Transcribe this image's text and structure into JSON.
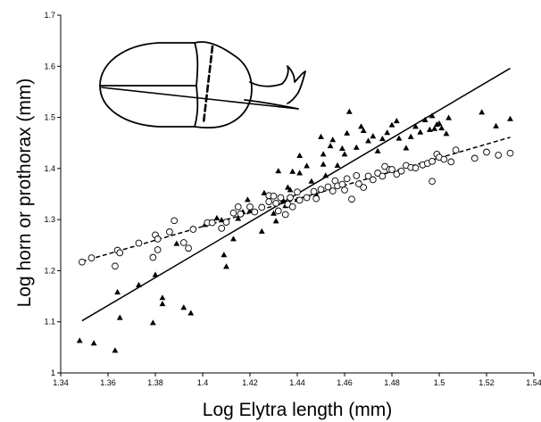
{
  "chart_data": {
    "type": "scatter",
    "title": "",
    "xlabel": "Log Elytra length (mm)",
    "ylabel": "Log horn or prothorax (mm)",
    "xlim": [
      1.34,
      1.54
    ],
    "ylim": [
      1.0,
      1.7
    ],
    "x_ticks": [
      "1.34",
      "1.36",
      "1.38",
      "1.4",
      "1.42",
      "1.44",
      "1.46",
      "1.48",
      "1.5",
      "1.52",
      "1.54"
    ],
    "y_ticks": [
      "1",
      "1.1",
      "1.2",
      "1.3",
      "1.4",
      "1.5",
      "1.6",
      "1.7"
    ],
    "grid": false,
    "legend": "none",
    "series": [
      {
        "marker": "filled-triangle",
        "color": "#000000",
        "points": [
          [
            1.348,
            1.063
          ],
          [
            1.354,
            1.058
          ],
          [
            1.363,
            1.044
          ],
          [
            1.364,
            1.158
          ],
          [
            1.365,
            1.108
          ],
          [
            1.373,
            1.172
          ],
          [
            1.379,
            1.098
          ],
          [
            1.38,
            1.192
          ],
          [
            1.383,
            1.147
          ],
          [
            1.383,
            1.135
          ],
          [
            1.389,
            1.253
          ],
          [
            1.392,
            1.128
          ],
          [
            1.395,
            1.117
          ],
          [
            1.401,
            1.29
          ],
          [
            1.406,
            1.303
          ],
          [
            1.408,
            1.299
          ],
          [
            1.409,
            1.231
          ],
          [
            1.41,
            1.208
          ],
          [
            1.413,
            1.262
          ],
          [
            1.415,
            1.302
          ],
          [
            1.417,
            1.315
          ],
          [
            1.419,
            1.339
          ],
          [
            1.42,
            1.317
          ],
          [
            1.425,
            1.277
          ],
          [
            1.426,
            1.352
          ],
          [
            1.428,
            1.347
          ],
          [
            1.43,
            1.312
          ],
          [
            1.431,
            1.297
          ],
          [
            1.432,
            1.395
          ],
          [
            1.434,
            1.338
          ],
          [
            1.435,
            1.327
          ],
          [
            1.436,
            1.363
          ],
          [
            1.437,
            1.358
          ],
          [
            1.438,
            1.394
          ],
          [
            1.44,
            1.339
          ],
          [
            1.441,
            1.425
          ],
          [
            1.441,
            1.391
          ],
          [
            1.444,
            1.405
          ],
          [
            1.446,
            1.375
          ],
          [
            1.448,
            1.349
          ],
          [
            1.45,
            1.462
          ],
          [
            1.451,
            1.428
          ],
          [
            1.451,
            1.408
          ],
          [
            1.452,
            1.386
          ],
          [
            1.454,
            1.444
          ],
          [
            1.455,
            1.456
          ],
          [
            1.457,
            1.406
          ],
          [
            1.459,
            1.439
          ],
          [
            1.46,
            1.428
          ],
          [
            1.461,
            1.469
          ],
          [
            1.462,
            1.511
          ],
          [
            1.465,
            1.441
          ],
          [
            1.467,
            1.482
          ],
          [
            1.468,
            1.474
          ],
          [
            1.47,
            1.454
          ],
          [
            1.472,
            1.463
          ],
          [
            1.474,
            1.434
          ],
          [
            1.476,
            1.458
          ],
          [
            1.478,
            1.47
          ],
          [
            1.48,
            1.485
          ],
          [
            1.482,
            1.493
          ],
          [
            1.483,
            1.459
          ],
          [
            1.486,
            1.44
          ],
          [
            1.488,
            1.462
          ],
          [
            1.49,
            1.482
          ],
          [
            1.492,
            1.471
          ],
          [
            1.494,
            1.495
          ],
          [
            1.496,
            1.476
          ],
          [
            1.497,
            1.503
          ],
          [
            1.498,
            1.478
          ],
          [
            1.499,
            1.486
          ],
          [
            1.5,
            1.488
          ],
          [
            1.501,
            1.479
          ],
          [
            1.503,
            1.468
          ],
          [
            1.504,
            1.499
          ],
          [
            1.518,
            1.51
          ],
          [
            1.524,
            1.483
          ],
          [
            1.53,
            1.497
          ]
        ]
      },
      {
        "marker": "open-circle",
        "color": "#000000",
        "points": [
          [
            1.349,
            1.217
          ],
          [
            1.353,
            1.225
          ],
          [
            1.363,
            1.209
          ],
          [
            1.364,
            1.24
          ],
          [
            1.365,
            1.235
          ],
          [
            1.373,
            1.254
          ],
          [
            1.379,
            1.226
          ],
          [
            1.38,
            1.27
          ],
          [
            1.381,
            1.241
          ],
          [
            1.381,
            1.262
          ],
          [
            1.386,
            1.276
          ],
          [
            1.388,
            1.298
          ],
          [
            1.392,
            1.255
          ],
          [
            1.394,
            1.244
          ],
          [
            1.396,
            1.281
          ],
          [
            1.402,
            1.294
          ],
          [
            1.404,
            1.294
          ],
          [
            1.408,
            1.283
          ],
          [
            1.41,
            1.295
          ],
          [
            1.413,
            1.313
          ],
          [
            1.415,
            1.325
          ],
          [
            1.416,
            1.311
          ],
          [
            1.42,
            1.325
          ],
          [
            1.422,
            1.315
          ],
          [
            1.425,
            1.324
          ],
          [
            1.428,
            1.335
          ],
          [
            1.428,
            1.347
          ],
          [
            1.43,
            1.346
          ],
          [
            1.431,
            1.332
          ],
          [
            1.432,
            1.317
          ],
          [
            1.433,
            1.343
          ],
          [
            1.435,
            1.31
          ],
          [
            1.436,
            1.33
          ],
          [
            1.437,
            1.343
          ],
          [
            1.438,
            1.325
          ],
          [
            1.44,
            1.354
          ],
          [
            1.441,
            1.338
          ],
          [
            1.444,
            1.343
          ],
          [
            1.447,
            1.355
          ],
          [
            1.448,
            1.341
          ],
          [
            1.45,
            1.359
          ],
          [
            1.453,
            1.364
          ],
          [
            1.455,
            1.356
          ],
          [
            1.456,
            1.376
          ],
          [
            1.457,
            1.366
          ],
          [
            1.459,
            1.369
          ],
          [
            1.46,
            1.358
          ],
          [
            1.461,
            1.38
          ],
          [
            1.463,
            1.34
          ],
          [
            1.465,
            1.386
          ],
          [
            1.466,
            1.37
          ],
          [
            1.468,
            1.363
          ],
          [
            1.47,
            1.385
          ],
          [
            1.472,
            1.378
          ],
          [
            1.474,
            1.391
          ],
          [
            1.476,
            1.385
          ],
          [
            1.477,
            1.404
          ],
          [
            1.479,
            1.398
          ],
          [
            1.48,
            1.398
          ],
          [
            1.482,
            1.389
          ],
          [
            1.484,
            1.395
          ],
          [
            1.486,
            1.406
          ],
          [
            1.488,
            1.402
          ],
          [
            1.49,
            1.401
          ],
          [
            1.493,
            1.407
          ],
          [
            1.495,
            1.41
          ],
          [
            1.497,
            1.375
          ],
          [
            1.497,
            1.414
          ],
          [
            1.499,
            1.428
          ],
          [
            1.5,
            1.422
          ],
          [
            1.502,
            1.418
          ],
          [
            1.505,
            1.413
          ],
          [
            1.507,
            1.436
          ],
          [
            1.515,
            1.42
          ],
          [
            1.52,
            1.432
          ],
          [
            1.525,
            1.426
          ],
          [
            1.53,
            1.43
          ]
        ]
      }
    ],
    "trend_lines": [
      {
        "style": "solid",
        "color": "#000000",
        "x": [
          1.349,
          1.53
        ],
        "y": [
          1.102,
          1.596
        ]
      },
      {
        "style": "dashed",
        "color": "#000000",
        "x": [
          1.349,
          1.53
        ],
        "y": [
          1.218,
          1.461
        ]
      }
    ]
  },
  "inset": {
    "content": "beetle-outline-icon",
    "color": "#000000"
  }
}
